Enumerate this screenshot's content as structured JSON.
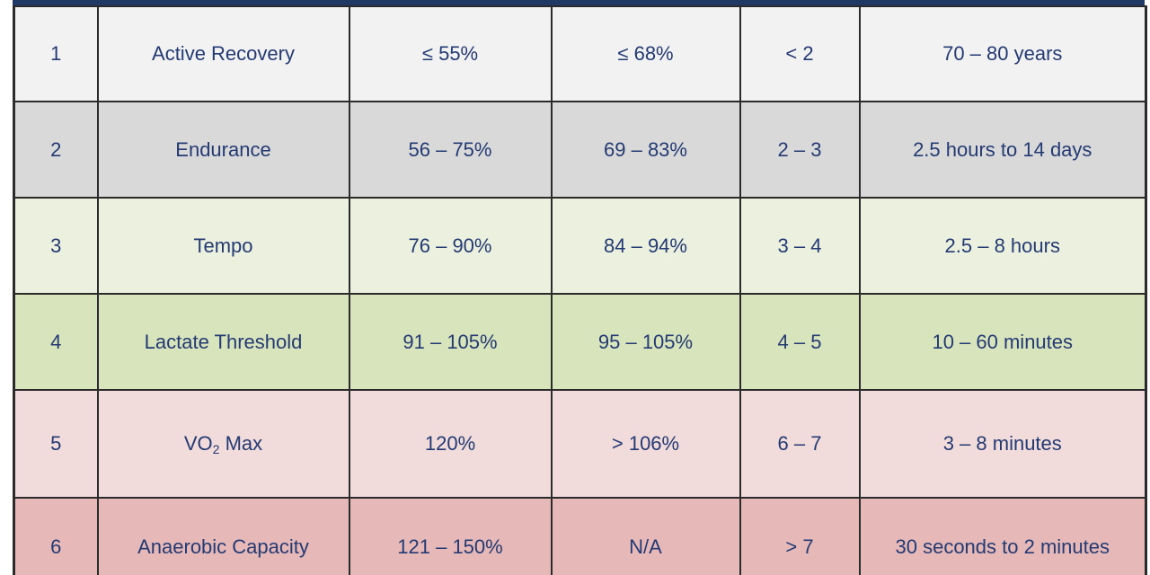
{
  "colors": {
    "header_bar": "#1f3864",
    "text": "#243a73",
    "border": "#2b2b2b"
  },
  "rows": [
    {
      "zone": "1",
      "name": "Active Recovery",
      "power": "≤ 55%",
      "heart_rate": "≤ 68%",
      "rpe": "< 2",
      "duration": "70 – 80 years",
      "bg": "#f2f2f2",
      "height": 106
    },
    {
      "zone": "2",
      "name": "Endurance",
      "power": "56 – 75%",
      "heart_rate": "69 – 83%",
      "rpe": "2 – 3",
      "duration": "2.5 hours to 14 days",
      "bg": "#d9d9d9",
      "height": 107
    },
    {
      "zone": "3",
      "name": "Tempo",
      "power": "76 – 90%",
      "heart_rate": "84 – 94%",
      "rpe": "3 – 4",
      "duration": "2.5 – 8 hours",
      "bg": "#ebf1de",
      "height": 107
    },
    {
      "zone": "4",
      "name": "Lactate Threshold",
      "power": "91 – 105%",
      "heart_rate": "95 – 105%",
      "rpe": "4 – 5",
      "duration": "10 – 60 minutes",
      "bg": "#d8e4bc",
      "height": 107
    },
    {
      "zone": "5",
      "name": "VO",
      "name_sub": "2",
      "name_tail": " Max",
      "power": "120%",
      "heart_rate": "> 106%",
      "rpe": "6 – 7",
      "duration": "3 – 8 minutes",
      "bg": "#f2dcdb",
      "height": 120
    },
    {
      "zone": "6",
      "name": "Anaerobic Capacity",
      "power": "121 – 150%",
      "heart_rate": "N/A",
      "rpe": "> 7",
      "duration": "30 seconds to 2 minutes",
      "bg": "#e6b9b8",
      "height": 110
    }
  ]
}
